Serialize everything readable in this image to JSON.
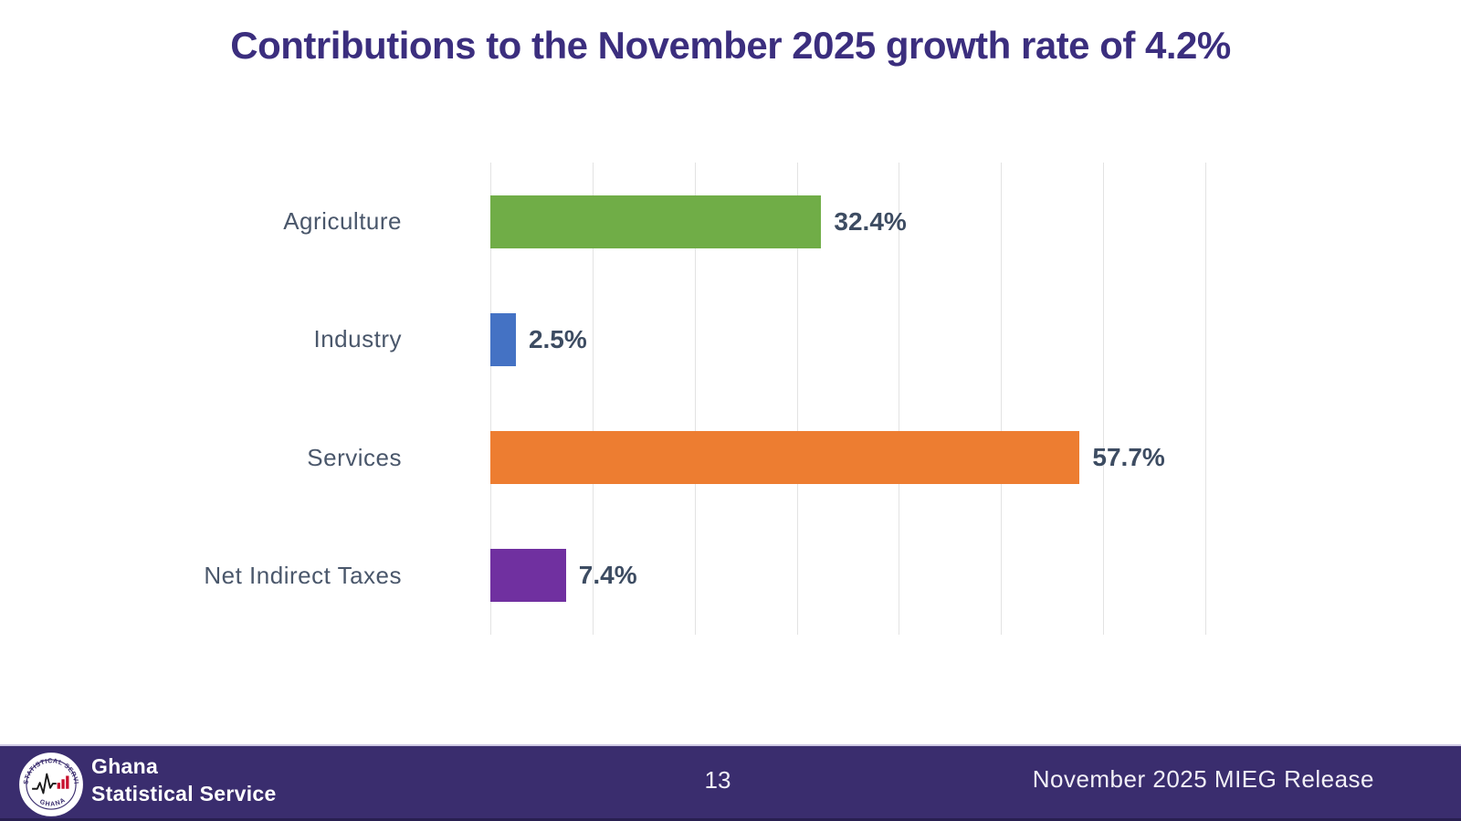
{
  "title": "Contributions to the November 2025 growth rate of 4.2%",
  "chart_data": {
    "type": "bar",
    "orientation": "horizontal",
    "title": "Contributions to the November 2025 growth rate of 4.2%",
    "categories": [
      "Agriculture",
      "Industry",
      "Services",
      "Net Indirect Taxes"
    ],
    "values": [
      32.4,
      2.5,
      57.7,
      7.4
    ],
    "data_labels": [
      "32.4%",
      "2.5%",
      "57.7%",
      "7.4%"
    ],
    "bar_colors": [
      "#70ad47",
      "#4472c4",
      "#ed7d31",
      "#7030a0"
    ],
    "xlabel": "",
    "ylabel": "",
    "xlim": [
      0,
      70
    ],
    "gridline_step": 10,
    "grid": "vertical-only, light gray, no tick labels",
    "legend": "none"
  },
  "footer": {
    "logo": {
      "badge_top_text": "STATISTICAL SERVICE",
      "badge_bottom_text": "GHANA",
      "org_line1": "Ghana",
      "org_line2": "Statistical Service"
    },
    "page_number": "13",
    "release_label": "November 2025 MIEG Release"
  },
  "colors": {
    "title_text": "#3b2e7e",
    "category_label": "#4a576b",
    "value_label": "#3d4c62",
    "gridline": "#e3e3e3",
    "footer_background": "#3a2d6e",
    "footer_text": "#f2f0f7",
    "bar_green": "#70ad47",
    "bar_blue": "#4472c4",
    "bar_orange": "#ed7d31",
    "bar_purple": "#7030a0"
  }
}
